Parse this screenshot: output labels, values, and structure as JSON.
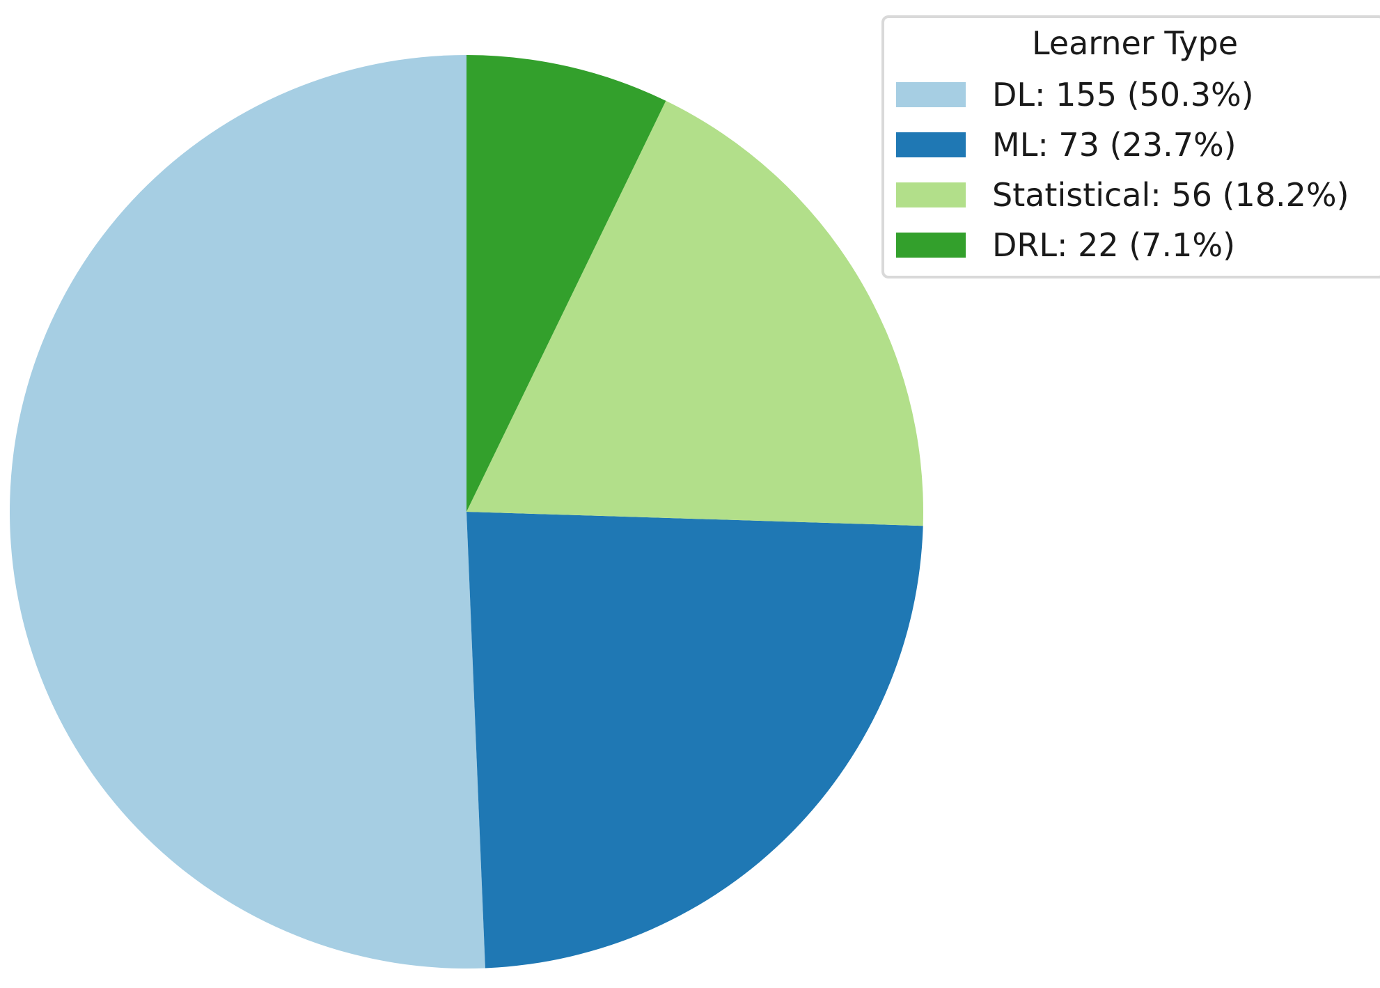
{
  "chart_data": {
    "type": "pie",
    "title": "",
    "legend_title": "Learner Type",
    "legend_position": "top-right",
    "start_angle_deg": 90,
    "direction": "counterclockwise",
    "slices": [
      {
        "name": "DL",
        "value": 155,
        "percent": 50.3,
        "label": "DL: 155 (50.3%)",
        "color": "#a6cee3"
      },
      {
        "name": "ML",
        "value": 73,
        "percent": 23.7,
        "label": "ML: 73 (23.7%)",
        "color": "#1f78b4"
      },
      {
        "name": "Statistical",
        "value": 56,
        "percent": 18.2,
        "label": "Statistical: 56 (18.2%)",
        "color": "#b2df8a"
      },
      {
        "name": "DRL",
        "value": 22,
        "percent": 7.1,
        "label": "DRL: 22 (7.1%)",
        "color": "#33a02c"
      }
    ]
  }
}
